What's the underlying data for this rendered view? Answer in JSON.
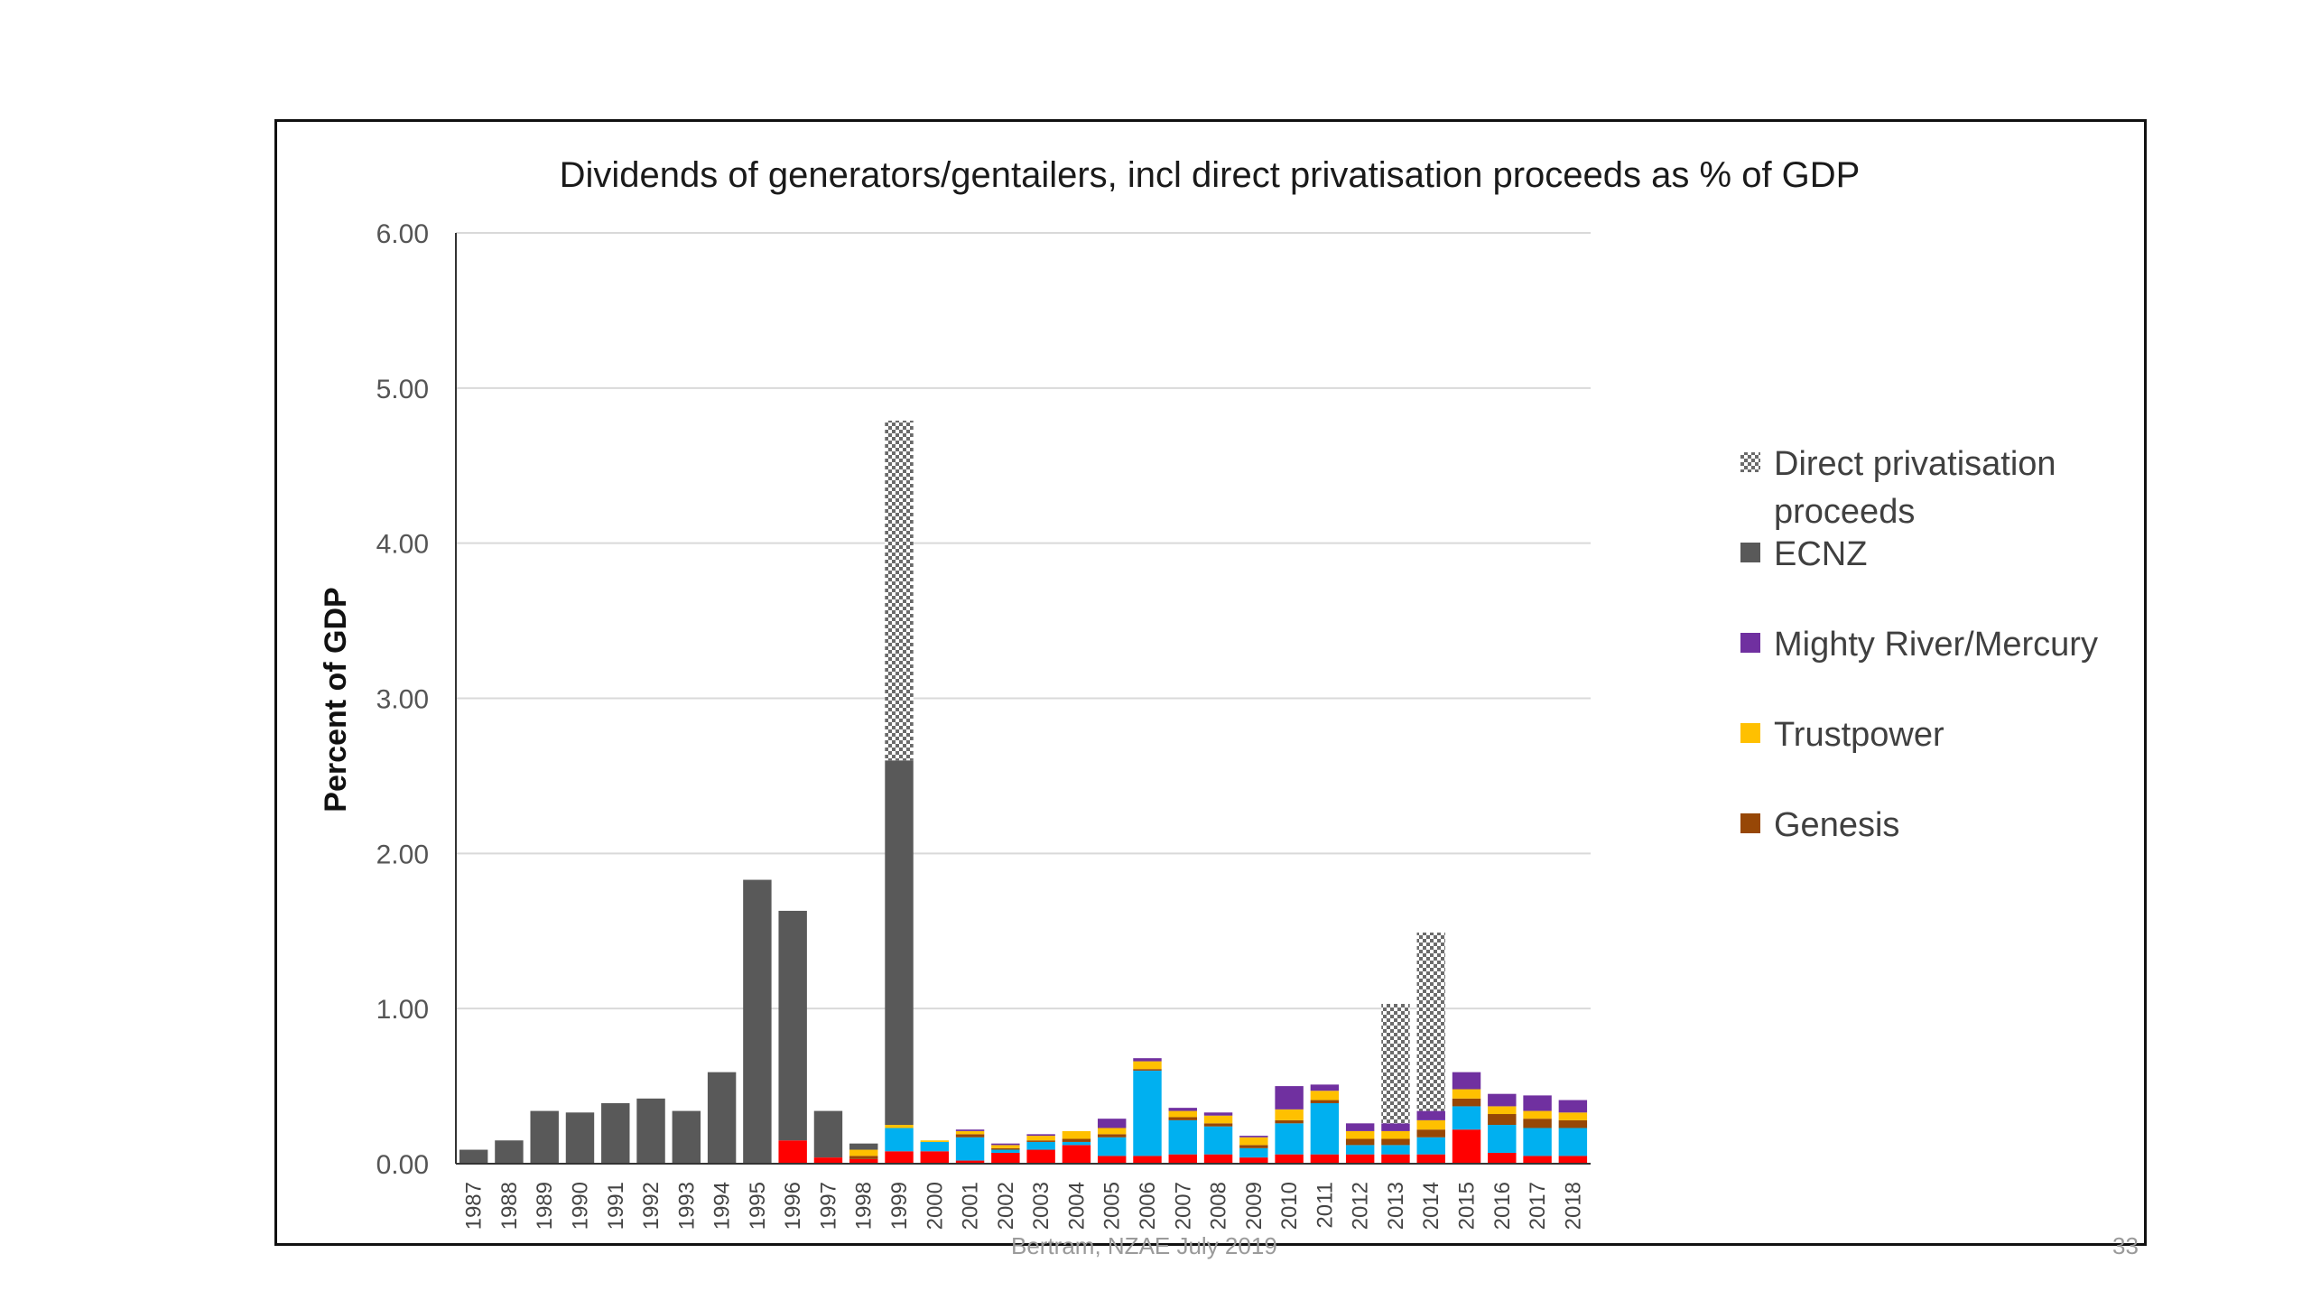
{
  "slide": {
    "footer": "Bertram, NZAE July 2019",
    "page_number": "33"
  },
  "chart_data": {
    "type": "bar",
    "stacked": true,
    "title": "Dividends of generators/gentailers, incl direct privatisation  proceeds as % of GDP",
    "ylabel": "Percent of GDP",
    "xlabel": "",
    "ylim": [
      0,
      6
    ],
    "yticks": [
      "0.00",
      "1.00",
      "2.00",
      "3.00",
      "4.00",
      "5.00",
      "6.00"
    ],
    "grid": true,
    "legend_position": "right",
    "categories": [
      "1987",
      "1988",
      "1989",
      "1990",
      "1991",
      "1992",
      "1993",
      "1994",
      "1995",
      "1996",
      "1997",
      "1998",
      "1999",
      "2000",
      "2001",
      "2002",
      "2003",
      "2004",
      "2005",
      "2006",
      "2007",
      "2008",
      "2009",
      "2010",
      "2011",
      "2012",
      "2013",
      "2014",
      "2015",
      "2016",
      "2017",
      "2018"
    ],
    "series": [
      {
        "name": "",
        "color": "#ff0000",
        "values": [
          0,
          0,
          0,
          0,
          0,
          0,
          0,
          0,
          0,
          0.15,
          0.04,
          0.03,
          0.08,
          0.08,
          0.02,
          0.07,
          0.09,
          0.12,
          0.05,
          0.05,
          0.06,
          0.06,
          0.04,
          0.06,
          0.06,
          0.06,
          0.06,
          0.06,
          0.22,
          0.07,
          0.05,
          0.05
        ]
      },
      {
        "name": "",
        "color": "#00b0f0",
        "values": [
          0,
          0,
          0,
          0,
          0,
          0,
          0,
          0,
          0,
          0,
          0,
          0,
          0.15,
          0.06,
          0.15,
          0.02,
          0.05,
          0.02,
          0.12,
          0.55,
          0.22,
          0.18,
          0.06,
          0.2,
          0.33,
          0.06,
          0.06,
          0.11,
          0.15,
          0.18,
          0.18,
          0.18
        ]
      },
      {
        "name": "Genesis",
        "color": "#974706",
        "values": [
          0,
          0,
          0,
          0,
          0,
          0,
          0,
          0,
          0,
          0,
          0,
          0.02,
          0,
          0,
          0.02,
          0.01,
          0.01,
          0.02,
          0.02,
          0.01,
          0.02,
          0.02,
          0.02,
          0.02,
          0.02,
          0.04,
          0.04,
          0.05,
          0.05,
          0.07,
          0.06,
          0.05
        ]
      },
      {
        "name": "Trustpower",
        "color": "#ffc000",
        "values": [
          0,
          0,
          0,
          0,
          0,
          0,
          0,
          0,
          0,
          0,
          0,
          0.04,
          0.02,
          0.01,
          0.02,
          0.02,
          0.03,
          0.05,
          0.04,
          0.05,
          0.04,
          0.05,
          0.05,
          0.07,
          0.06,
          0.05,
          0.05,
          0.06,
          0.06,
          0.05,
          0.05,
          0.05
        ]
      },
      {
        "name": "Mighty River/Mercury",
        "color": "#7030a0",
        "values": [
          0,
          0,
          0,
          0,
          0,
          0,
          0,
          0,
          0,
          0,
          0,
          0,
          0,
          0,
          0.01,
          0.01,
          0.01,
          0,
          0.06,
          0.02,
          0.02,
          0.02,
          0.01,
          0.15,
          0.04,
          0.05,
          0.05,
          0.06,
          0.11,
          0.08,
          0.1,
          0.08
        ]
      },
      {
        "name": "ECNZ",
        "color": "#595959",
        "values": [
          0.09,
          0.15,
          0.34,
          0.33,
          0.39,
          0.42,
          0.34,
          0.59,
          1.83,
          1.48,
          0.3,
          0.04,
          2.35,
          0,
          0,
          0,
          0,
          0,
          0,
          0,
          0,
          0,
          0,
          0,
          0,
          0,
          0,
          0,
          0,
          0,
          0,
          0
        ]
      },
      {
        "name": "Direct privatisation proceeds",
        "color": "#808080",
        "pattern": "checker",
        "values": [
          0,
          0,
          0,
          0,
          0,
          0,
          0,
          0,
          0,
          0,
          0,
          0,
          2.19,
          0,
          0,
          0,
          0,
          0,
          0,
          0,
          0,
          0,
          0,
          0,
          0,
          0,
          0.77,
          1.15,
          0,
          0,
          0,
          0
        ]
      }
    ],
    "legend": [
      {
        "label": "Direct privatisation proceeds",
        "lines": [
          "Direct privatisation",
          "proceeds"
        ],
        "color": "#808080",
        "pattern": "checker"
      },
      {
        "label": "ECNZ",
        "lines": [
          "ECNZ"
        ],
        "color": "#595959"
      },
      {
        "label": "Mighty River/Mercury",
        "lines": [
          "Mighty River/Mercury"
        ],
        "color": "#7030a0"
      },
      {
        "label": "Trustpower",
        "lines": [
          "Trustpower"
        ],
        "color": "#ffc000"
      },
      {
        "label": "Genesis",
        "lines": [
          "Genesis"
        ],
        "color": "#974706"
      }
    ]
  }
}
